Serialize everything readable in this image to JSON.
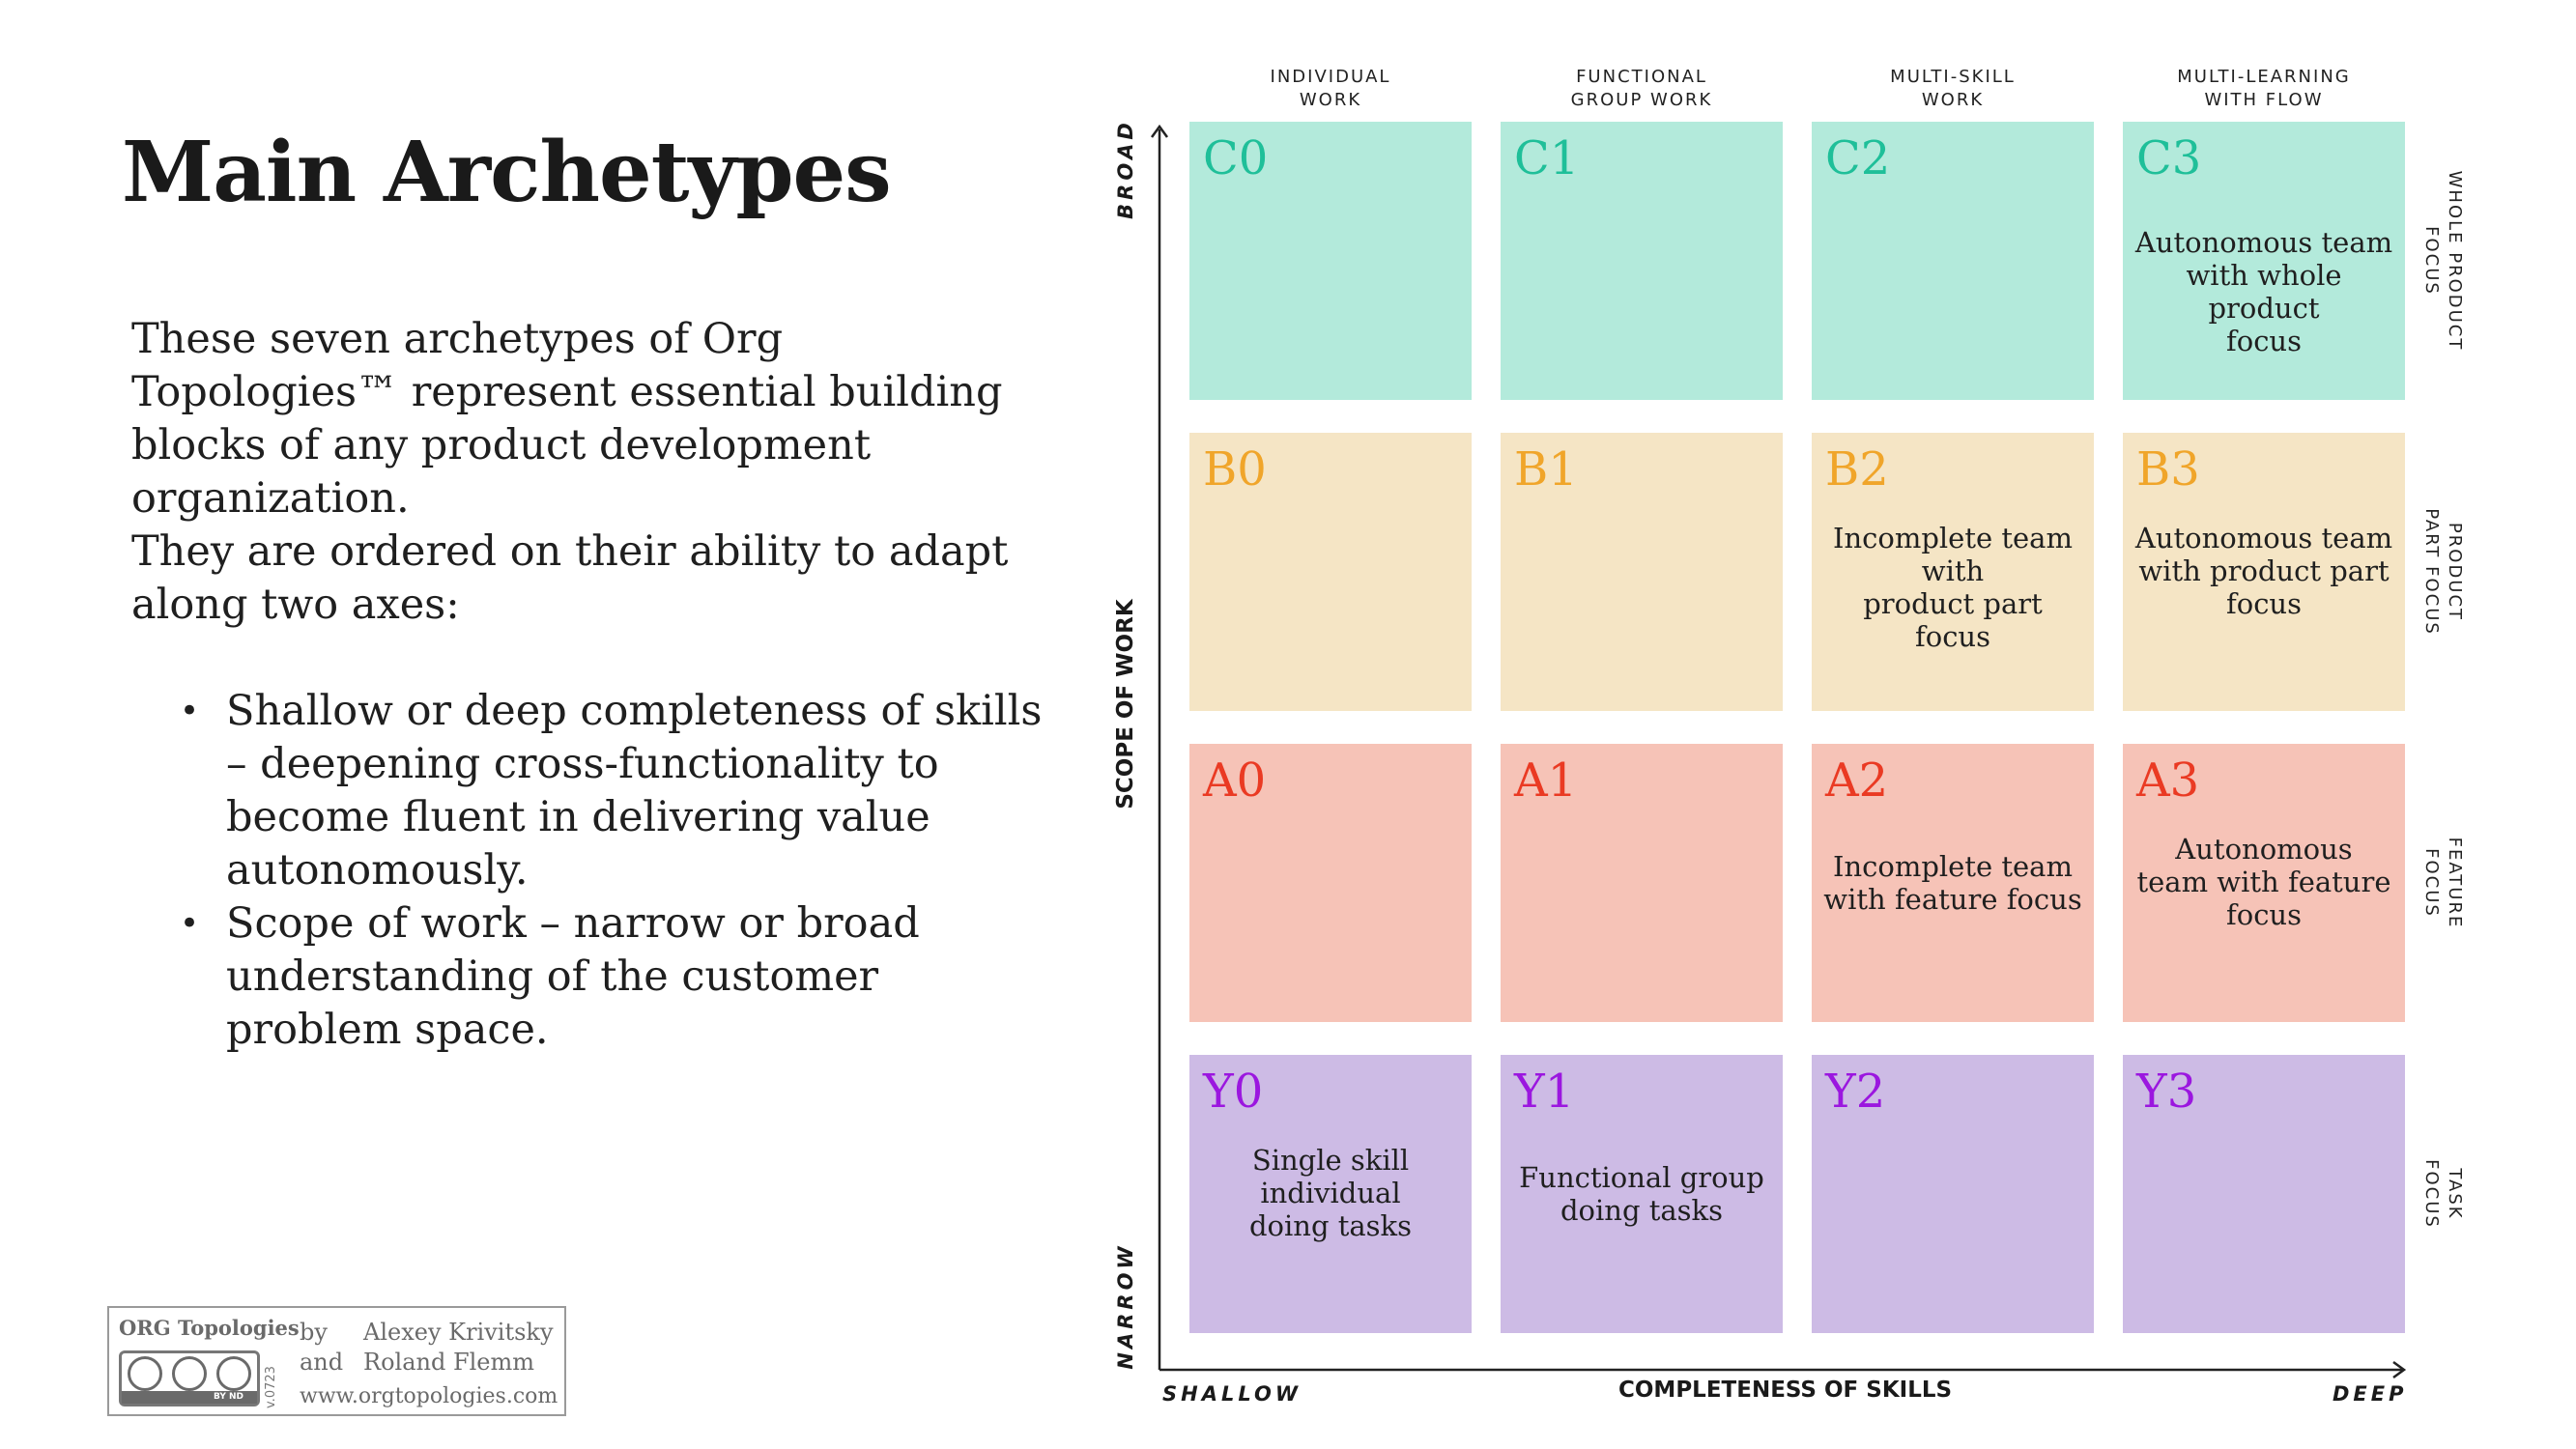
{
  "title": "Main Archetypes",
  "intro": "These seven archetypes of Org Topologies™ represent essential building blocks of any product development organization.",
  "axes_intro": "They are ordered on their ability to adapt along two axes:",
  "bullets": [
    "Shallow or deep completeness of skills – deepening cross-functionality to become fluent in delivering value autonomously.",
    "Scope of work – narrow or broad understanding of the customer problem space."
  ],
  "license": {
    "brand": "ORG Topologies",
    "by": "by",
    "and": "and",
    "author1": "Alexey Krivitsky",
    "author2": "Roland Flemm",
    "url": "www.orgtopologies.com",
    "version": "v.0723",
    "cc_strip": "BY    ND"
  },
  "matrix": {
    "columns": [
      {
        "line1": "INDIVIDUAL",
        "line2": "WORK"
      },
      {
        "line1": "FUNCTIONAL",
        "line2": "GROUP WORK"
      },
      {
        "line1": "MULTI-SKILL",
        "line2": "WORK"
      },
      {
        "line1": "MULTI-LEARNING",
        "line2": "WITH FLOW"
      }
    ],
    "rows": [
      {
        "label1": "WHOLE PRODUCT",
        "label2": "FOCUS"
      },
      {
        "label1": "PRODUCT",
        "label2": "PART FOCUS"
      },
      {
        "label1": "FEATURE",
        "label2": "FOCUS"
      },
      {
        "label1": "TASK",
        "label2": "FOCUS"
      }
    ],
    "cells": {
      "C0": {
        "code": "C0",
        "lines": []
      },
      "C1": {
        "code": "C1",
        "lines": []
      },
      "C2": {
        "code": "C2",
        "lines": []
      },
      "C3": {
        "code": "C3",
        "lines": [
          "Autonomous team",
          "with whole product",
          "focus"
        ]
      },
      "B0": {
        "code": "B0",
        "lines": []
      },
      "B1": {
        "code": "B1",
        "lines": []
      },
      "B2": {
        "code": "B2",
        "lines": [
          "Incomplete team",
          "with",
          "product part focus"
        ]
      },
      "B3": {
        "code": "B3",
        "lines": [
          "Autonomous team",
          "with product part",
          "focus"
        ]
      },
      "A0": {
        "code": "A0",
        "lines": []
      },
      "A1": {
        "code": "A1",
        "lines": []
      },
      "A2": {
        "code": "A2",
        "lines": [
          "Incomplete team",
          "with feature focus"
        ]
      },
      "A3": {
        "code": "A3",
        "lines": [
          "Autonomous",
          "team with feature",
          "focus"
        ]
      },
      "Y0": {
        "code": "Y0",
        "lines": [
          "Single skill",
          "individual",
          "doing tasks"
        ]
      },
      "Y1": {
        "code": "Y1",
        "lines": [
          "Functional group",
          "doing tasks"
        ]
      },
      "Y2": {
        "code": "Y2",
        "lines": []
      },
      "Y3": {
        "code": "Y3",
        "lines": []
      }
    },
    "y_axis": {
      "title": "SCOPE OF WORK",
      "top": "BROAD",
      "bottom": "NARROW"
    },
    "x_axis": {
      "title": "COMPLETENESS OF SKILLS",
      "left": "SHALLOW",
      "right": "DEEP"
    }
  }
}
